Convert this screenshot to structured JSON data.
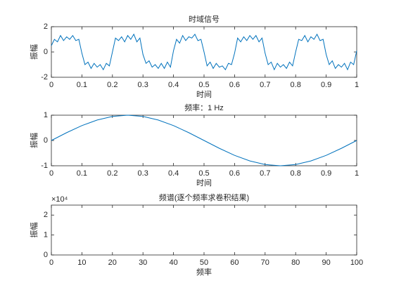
{
  "chart_data": [
    {
      "type": "line",
      "title": "时域信号",
      "xlabel": "时间",
      "ylabel": "振幅",
      "x": [
        0,
        0.01,
        0.02,
        0.03,
        0.04,
        0.05,
        0.06,
        0.07,
        0.08,
        0.09,
        0.1,
        0.11,
        0.12,
        0.13,
        0.14,
        0.15,
        0.16,
        0.17,
        0.18,
        0.19,
        0.2,
        0.21,
        0.22,
        0.23,
        0.24,
        0.25,
        0.26,
        0.27,
        0.28,
        0.29,
        0.3,
        0.31,
        0.32,
        0.33,
        0.34,
        0.35,
        0.36,
        0.37,
        0.38,
        0.39,
        0.4,
        0.41,
        0.42,
        0.43,
        0.44,
        0.45,
        0.46,
        0.47,
        0.48,
        0.49,
        0.5,
        0.51,
        0.52,
        0.53,
        0.54,
        0.55,
        0.56,
        0.57,
        0.58,
        0.59,
        0.6,
        0.61,
        0.62,
        0.63,
        0.64,
        0.65,
        0.66,
        0.67,
        0.68,
        0.69,
        0.7,
        0.71,
        0.72,
        0.73,
        0.74,
        0.75,
        0.76,
        0.77,
        0.78,
        0.79,
        0.8,
        0.81,
        0.82,
        0.83,
        0.84,
        0.85,
        0.86,
        0.87,
        0.88,
        0.89,
        0.9,
        0.91,
        0.92,
        0.93,
        0.94,
        0.95,
        0.96,
        0.97,
        0.98,
        0.99,
        1
      ],
      "series": [
        {
          "color": "#0072bd",
          "values": [
            0.5,
            1.0,
            0.8,
            1.3,
            0.9,
            1.2,
            1.0,
            1.3,
            0.9,
            1.0,
            -0.1,
            -1.0,
            -0.8,
            -1.3,
            -0.9,
            -1.2,
            -1.0,
            -1.4,
            -0.9,
            -1.1,
            0.0,
            1.1,
            0.9,
            1.2,
            0.8,
            1.3,
            1.0,
            1.4,
            0.8,
            1.1,
            -0.2,
            -0.9,
            -0.7,
            -1.2,
            -1.0,
            -1.3,
            -0.9,
            -1.3,
            -0.8,
            -1.2,
            0.1,
            1.0,
            0.7,
            1.3,
            0.9,
            1.2,
            1.1,
            1.4,
            0.9,
            1.0,
            0.0,
            -1.1,
            -0.8,
            -1.3,
            -0.9,
            -1.2,
            -1.1,
            -1.4,
            -0.9,
            -1.0,
            -0.1,
            1.1,
            0.8,
            1.2,
            0.9,
            1.3,
            1.0,
            1.3,
            0.8,
            1.1,
            -0.1,
            -1.0,
            -0.8,
            -1.4,
            -0.9,
            -1.2,
            -1.0,
            -1.3,
            -0.8,
            -1.1,
            0.0,
            1.0,
            0.9,
            1.3,
            0.8,
            1.2,
            1.0,
            1.4,
            0.9,
            1.0,
            -0.2,
            -1.0,
            -0.7,
            -1.3,
            -1.0,
            -1.2,
            -0.9,
            -1.4,
            -0.8,
            -1.0,
            0.1
          ]
        }
      ],
      "xlim": [
        0,
        1
      ],
      "xticks": [
        0,
        0.1,
        0.2,
        0.3,
        0.4,
        0.5,
        0.6,
        0.7,
        0.8,
        0.9,
        1
      ],
      "ylim": [
        -2,
        2
      ],
      "yticks": [
        -2,
        0,
        2
      ]
    },
    {
      "type": "line",
      "title": "频率：1 Hz",
      "xlabel": "时间",
      "ylabel": "振幅",
      "x": [
        0,
        0.05,
        0.1,
        0.15,
        0.2,
        0.25,
        0.3,
        0.35,
        0.4,
        0.45,
        0.5,
        0.55,
        0.6,
        0.65,
        0.7,
        0.75,
        0.8,
        0.85,
        0.9,
        0.95,
        1
      ],
      "series": [
        {
          "color": "#0072bd",
          "values": [
            0,
            0.309,
            0.588,
            0.809,
            0.951,
            1,
            0.951,
            0.809,
            0.588,
            0.309,
            0,
            -0.309,
            -0.588,
            -0.809,
            -0.951,
            -1,
            -0.951,
            -0.809,
            -0.588,
            -0.309,
            0
          ]
        }
      ],
      "xlim": [
        0,
        1
      ],
      "xticks": [
        0,
        0.1,
        0.2,
        0.3,
        0.4,
        0.5,
        0.6,
        0.7,
        0.8,
        0.9,
        1
      ],
      "ylim": [
        -1,
        1
      ],
      "yticks": [
        -1,
        0,
        1
      ]
    },
    {
      "type": "line",
      "title": "频谱(逐个频率求卷积结果)",
      "xlabel": "频率",
      "ylabel": "振幅",
      "y_exponent": "×10⁴",
      "xlim": [
        0,
        100
      ],
      "xticks": [
        0,
        10,
        20,
        30,
        40,
        50,
        60,
        70,
        80,
        90,
        100
      ],
      "ylim": [
        0,
        25000
      ],
      "yticks": [
        0,
        {
          "value": 10000,
          "label": "1"
        },
        {
          "value": 20000,
          "label": "2"
        }
      ]
    }
  ]
}
